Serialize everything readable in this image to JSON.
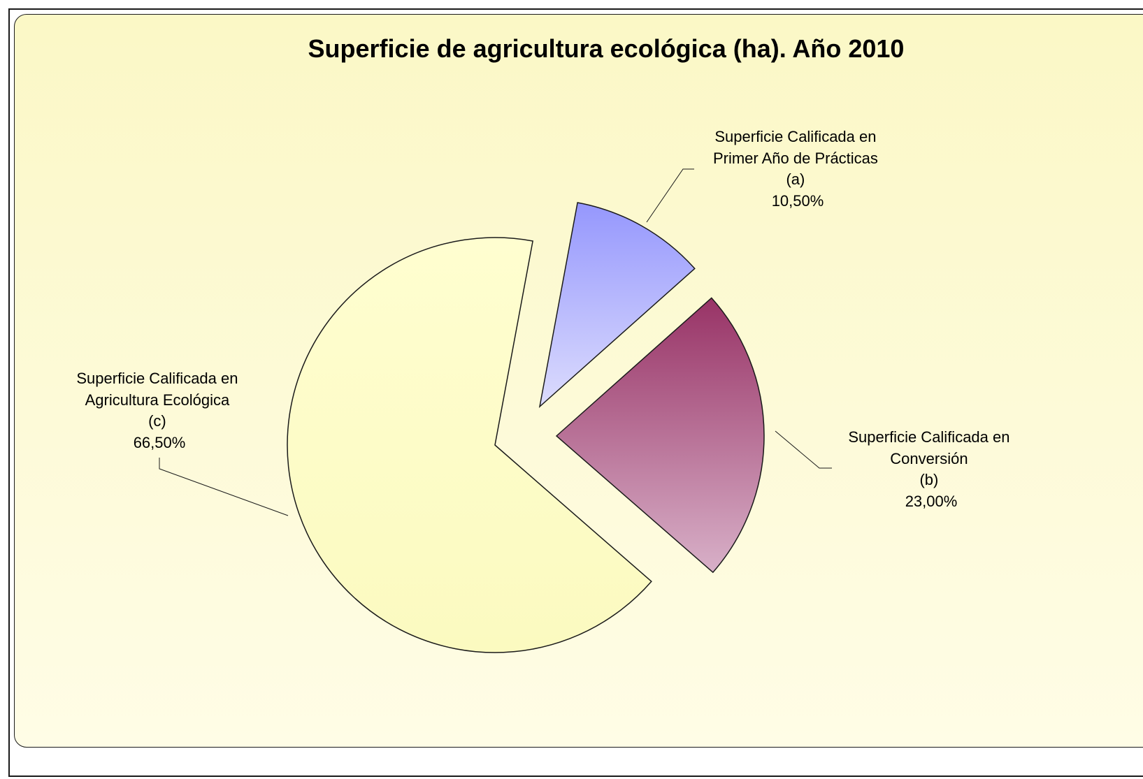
{
  "chart_data": {
    "type": "pie",
    "title": "Superficie de agricultura ecológica (ha). Año 2010",
    "slices": [
      {
        "label_lines": [
          "Superficie Calificada en",
          "Primer Año de Prácticas",
          "(a)"
        ],
        "percent_label": "10,50%",
        "value": 10.5,
        "color_top": "#9597fd",
        "color_bottom": "#dcdcfd"
      },
      {
        "label_lines": [
          "Superficie Calificada en",
          "Conversión",
          "(b)"
        ],
        "percent_label": "23,00%",
        "value": 23.0,
        "color_top": "#983366",
        "color_bottom": "#d8b0c8"
      },
      {
        "label_lines": [
          "Superficie Calificada en",
          "Agricultura Ecológica",
          "(c)"
        ],
        "percent_label": "66,50%",
        "value": 66.5,
        "color_top": "#fffed0",
        "color_bottom": "#fbfac0"
      }
    ],
    "exploded": true,
    "legend": "none"
  }
}
